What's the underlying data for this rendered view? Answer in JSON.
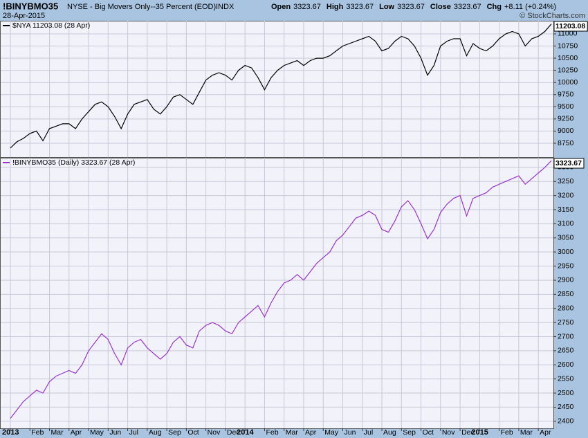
{
  "header": {
    "symbol": "!BINYBMO35",
    "description": "NYSE - Big Movers Only--35 Percent (EOD)",
    "exchange": "INDX",
    "date": "28-Apr-2015",
    "copyright": "© StockCharts.com",
    "quote": [
      {
        "label": "Open",
        "value": "3323.67"
      },
      {
        "label": "High",
        "value": "3323.67"
      },
      {
        "label": "Low",
        "value": "3323.67"
      },
      {
        "label": "Close",
        "value": "3323.67"
      },
      {
        "label": "Chg",
        "value": "+8.11 (+0.24%)"
      }
    ]
  },
  "chart_data": [
    {
      "type": "line",
      "last_label": "11203.08",
      "series": [
        {
          "name": "$NYA 11203.08 (28 Apr)",
          "color": "#000000",
          "values": [
            8650,
            8780,
            8850,
            8950,
            9000,
            8800,
            9050,
            9100,
            9150,
            9150,
            9050,
            9250,
            9400,
            9550,
            9600,
            9500,
            9300,
            9050,
            9350,
            9550,
            9600,
            9650,
            9450,
            9350,
            9500,
            9700,
            9750,
            9650,
            9550,
            9800,
            10050,
            10150,
            10200,
            10150,
            10050,
            10250,
            10350,
            10300,
            10100,
            9850,
            10100,
            10250,
            10350,
            10400,
            10450,
            10350,
            10450,
            10500,
            10500,
            10550,
            10650,
            10750,
            10800,
            10850,
            10900,
            10950,
            10850,
            10650,
            10700,
            10850,
            10950,
            10900,
            10750,
            10500,
            10150,
            10350,
            10750,
            10850,
            10900,
            10900,
            10550,
            10800,
            10700,
            10650,
            10750,
            10900,
            11000,
            11050,
            11000,
            10750,
            10900,
            10950,
            11050,
            11203.08
          ]
        }
      ],
      "ylim": [
        8465,
        11270
      ],
      "yticks": [
        8750,
        9000,
        9250,
        9500,
        9750,
        10000,
        10250,
        10500,
        10750,
        11000
      ],
      "grid": true
    },
    {
      "type": "line",
      "last_label": "3323.67",
      "categories": [
        "2013",
        null,
        null,
        "Feb",
        null,
        null,
        "Mar",
        null,
        null,
        "Apr",
        null,
        null,
        "May",
        null,
        null,
        "Jun",
        null,
        null,
        "Jul",
        null,
        null,
        "Aug",
        null,
        null,
        "Sep",
        null,
        null,
        "Oct",
        null,
        null,
        "Nov",
        null,
        null,
        "Dec",
        null,
        null,
        "2014",
        null,
        null,
        "Feb",
        null,
        null,
        "Mar",
        null,
        null,
        "Apr",
        null,
        null,
        "May",
        null,
        null,
        "Jun",
        null,
        null,
        "Jul",
        null,
        null,
        "Aug",
        null,
        null,
        "Sep",
        null,
        null,
        "Oct",
        null,
        null,
        "Nov",
        null,
        null,
        "Dec",
        null,
        null,
        "2015",
        null,
        null,
        "Feb",
        null,
        null,
        "Mar",
        null,
        null,
        "Apr",
        null,
        null
      ],
      "series": [
        {
          "name": "!BINYBMO35 (Daily) 3323.67 (28 Apr)",
          "color": "#9933cc",
          "values": [
            2410,
            2440,
            2470,
            2490,
            2510,
            2500,
            2540,
            2560,
            2570,
            2580,
            2570,
            2600,
            2650,
            2680,
            2710,
            2690,
            2640,
            2600,
            2660,
            2680,
            2690,
            2660,
            2640,
            2620,
            2640,
            2680,
            2700,
            2670,
            2660,
            2720,
            2740,
            2750,
            2740,
            2720,
            2710,
            2750,
            2770,
            2790,
            2810,
            2770,
            2820,
            2860,
            2890,
            2900,
            2920,
            2900,
            2930,
            2960,
            2980,
            3000,
            3040,
            3060,
            3090,
            3120,
            3130,
            3145,
            3130,
            3080,
            3070,
            3110,
            3160,
            3182,
            3150,
            3100,
            3047,
            3080,
            3140,
            3170,
            3190,
            3200,
            3128,
            3190,
            3200,
            3210,
            3230,
            3240,
            3250,
            3260,
            3270,
            3240,
            3260,
            3280,
            3300,
            3323.67
          ]
        }
      ],
      "ylim": [
        2375,
        3334
      ],
      "yticks": [
        2400,
        2450,
        2500,
        2550,
        2600,
        2650,
        2700,
        2750,
        2800,
        2850,
        2900,
        2950,
        3000,
        3050,
        3100,
        3150,
        3200,
        3250,
        3300
      ],
      "grid": true
    }
  ]
}
